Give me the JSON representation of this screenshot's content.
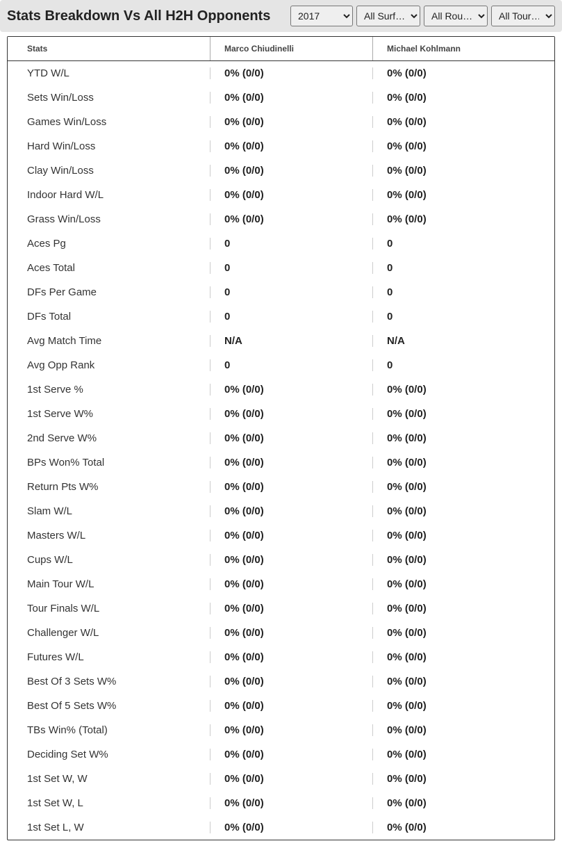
{
  "header": {
    "title": "Stats Breakdown Vs All H2H Opponents"
  },
  "filters": {
    "year": {
      "selected": "2017",
      "options": [
        "2017"
      ]
    },
    "surface": {
      "selected": "All Surf…",
      "options": [
        "All Surf…"
      ]
    },
    "round": {
      "selected": "All Rou…",
      "options": [
        "All Rou…"
      ]
    },
    "tour": {
      "selected": "All Tour…",
      "options": [
        "All Tour…"
      ]
    }
  },
  "table": {
    "columns": {
      "stats": "Stats",
      "player1": "Marco Chiudinelli",
      "player2": "Michael Kohlmann"
    },
    "rows": [
      {
        "stat": "YTD W/L",
        "p1": "0% (0/0)",
        "p2": "0% (0/0)"
      },
      {
        "stat": "Sets Win/Loss",
        "p1": "0% (0/0)",
        "p2": "0% (0/0)"
      },
      {
        "stat": "Games Win/Loss",
        "p1": "0% (0/0)",
        "p2": "0% (0/0)"
      },
      {
        "stat": "Hard Win/Loss",
        "p1": "0% (0/0)",
        "p2": "0% (0/0)"
      },
      {
        "stat": "Clay Win/Loss",
        "p1": "0% (0/0)",
        "p2": "0% (0/0)"
      },
      {
        "stat": "Indoor Hard W/L",
        "p1": "0% (0/0)",
        "p2": "0% (0/0)"
      },
      {
        "stat": "Grass Win/Loss",
        "p1": "0% (0/0)",
        "p2": "0% (0/0)"
      },
      {
        "stat": "Aces Pg",
        "p1": "0",
        "p2": "0"
      },
      {
        "stat": "Aces Total",
        "p1": "0",
        "p2": "0"
      },
      {
        "stat": "DFs Per Game",
        "p1": "0",
        "p2": "0"
      },
      {
        "stat": "DFs Total",
        "p1": "0",
        "p2": "0"
      },
      {
        "stat": "Avg Match Time",
        "p1": "N/A",
        "p2": "N/A"
      },
      {
        "stat": "Avg Opp Rank",
        "p1": "0",
        "p2": "0"
      },
      {
        "stat": "1st Serve %",
        "p1": "0% (0/0)",
        "p2": "0% (0/0)"
      },
      {
        "stat": "1st Serve W%",
        "p1": "0% (0/0)",
        "p2": "0% (0/0)"
      },
      {
        "stat": "2nd Serve W%",
        "p1": "0% (0/0)",
        "p2": "0% (0/0)"
      },
      {
        "stat": "BPs Won% Total",
        "p1": "0% (0/0)",
        "p2": "0% (0/0)"
      },
      {
        "stat": "Return Pts W%",
        "p1": "0% (0/0)",
        "p2": "0% (0/0)"
      },
      {
        "stat": "Slam W/L",
        "p1": "0% (0/0)",
        "p2": "0% (0/0)"
      },
      {
        "stat": "Masters W/L",
        "p1": "0% (0/0)",
        "p2": "0% (0/0)"
      },
      {
        "stat": "Cups W/L",
        "p1": "0% (0/0)",
        "p2": "0% (0/0)"
      },
      {
        "stat": "Main Tour W/L",
        "p1": "0% (0/0)",
        "p2": "0% (0/0)"
      },
      {
        "stat": "Tour Finals W/L",
        "p1": "0% (0/0)",
        "p2": "0% (0/0)"
      },
      {
        "stat": "Challenger W/L",
        "p1": "0% (0/0)",
        "p2": "0% (0/0)"
      },
      {
        "stat": "Futures W/L",
        "p1": "0% (0/0)",
        "p2": "0% (0/0)"
      },
      {
        "stat": "Best Of 3 Sets W%",
        "p1": "0% (0/0)",
        "p2": "0% (0/0)"
      },
      {
        "stat": "Best Of 5 Sets W%",
        "p1": "0% (0/0)",
        "p2": "0% (0/0)"
      },
      {
        "stat": "TBs Win% (Total)",
        "p1": "0% (0/0)",
        "p2": "0% (0/0)"
      },
      {
        "stat": "Deciding Set W%",
        "p1": "0% (0/0)",
        "p2": "0% (0/0)"
      },
      {
        "stat": "1st Set W, W",
        "p1": "0% (0/0)",
        "p2": "0% (0/0)"
      },
      {
        "stat": "1st Set W, L",
        "p1": "0% (0/0)",
        "p2": "0% (0/0)"
      },
      {
        "stat": "1st Set L, W",
        "p1": "0% (0/0)",
        "p2": "0% (0/0)"
      }
    ]
  }
}
